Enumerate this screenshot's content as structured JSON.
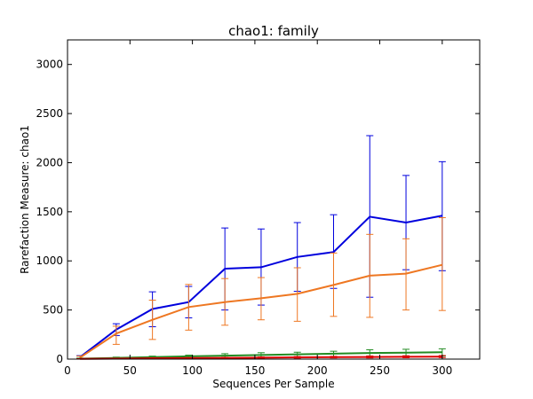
{
  "chart_data": {
    "type": "line",
    "title": "chao1: family",
    "xlabel": "Sequences Per Sample",
    "ylabel": "Rarefaction Measure: chao1",
    "xlim": [
      0,
      330
    ],
    "ylim": [
      0,
      3250
    ],
    "xticks": [
      0,
      50,
      100,
      150,
      200,
      250,
      300
    ],
    "yticks": [
      0,
      500,
      1000,
      1500,
      2000,
      2500,
      3000
    ],
    "grid": false,
    "legend": "none",
    "x": [
      10,
      39,
      68,
      97,
      126,
      155,
      184,
      213,
      242,
      271,
      300
    ],
    "series": [
      {
        "color": "#0000dd",
        "values": [
          20,
          300,
          510,
          580,
          920,
          935,
          1040,
          1090,
          1450,
          1390,
          1460
        ],
        "err_low": [
          5,
          240,
          330,
          420,
          500,
          550,
          690,
          720,
          630,
          910,
          900
        ],
        "err_high": [
          35,
          360,
          685,
          740,
          1335,
          1325,
          1390,
          1470,
          2275,
          1870,
          2010
        ]
      },
      {
        "color": "#ee7722",
        "values": [
          15,
          260,
          400,
          530,
          580,
          620,
          665,
          755,
          850,
          870,
          960
        ],
        "err_low": [
          5,
          150,
          200,
          295,
          345,
          400,
          385,
          435,
          425,
          500,
          495
        ],
        "err_high": [
          30,
          335,
          600,
          760,
          820,
          830,
          930,
          1080,
          1270,
          1225,
          1440
        ]
      },
      {
        "color": "#228b22",
        "values": [
          5,
          12,
          20,
          28,
          35,
          42,
          48,
          55,
          62,
          65,
          70
        ],
        "err_low": [
          0,
          5,
          10,
          15,
          15,
          18,
          20,
          25,
          30,
          30,
          30
        ],
        "err_high": [
          10,
          20,
          30,
          40,
          55,
          65,
          70,
          80,
          95,
          100,
          105
        ]
      },
      {
        "color": "#dd0000",
        "values": [
          2,
          5,
          8,
          10,
          12,
          15,
          18,
          20,
          22,
          24,
          25
        ],
        "err_low": [
          0,
          2,
          4,
          5,
          6,
          8,
          10,
          12,
          12,
          14,
          15
        ],
        "err_high": [
          5,
          8,
          12,
          15,
          18,
          22,
          26,
          28,
          32,
          34,
          36
        ]
      }
    ]
  }
}
